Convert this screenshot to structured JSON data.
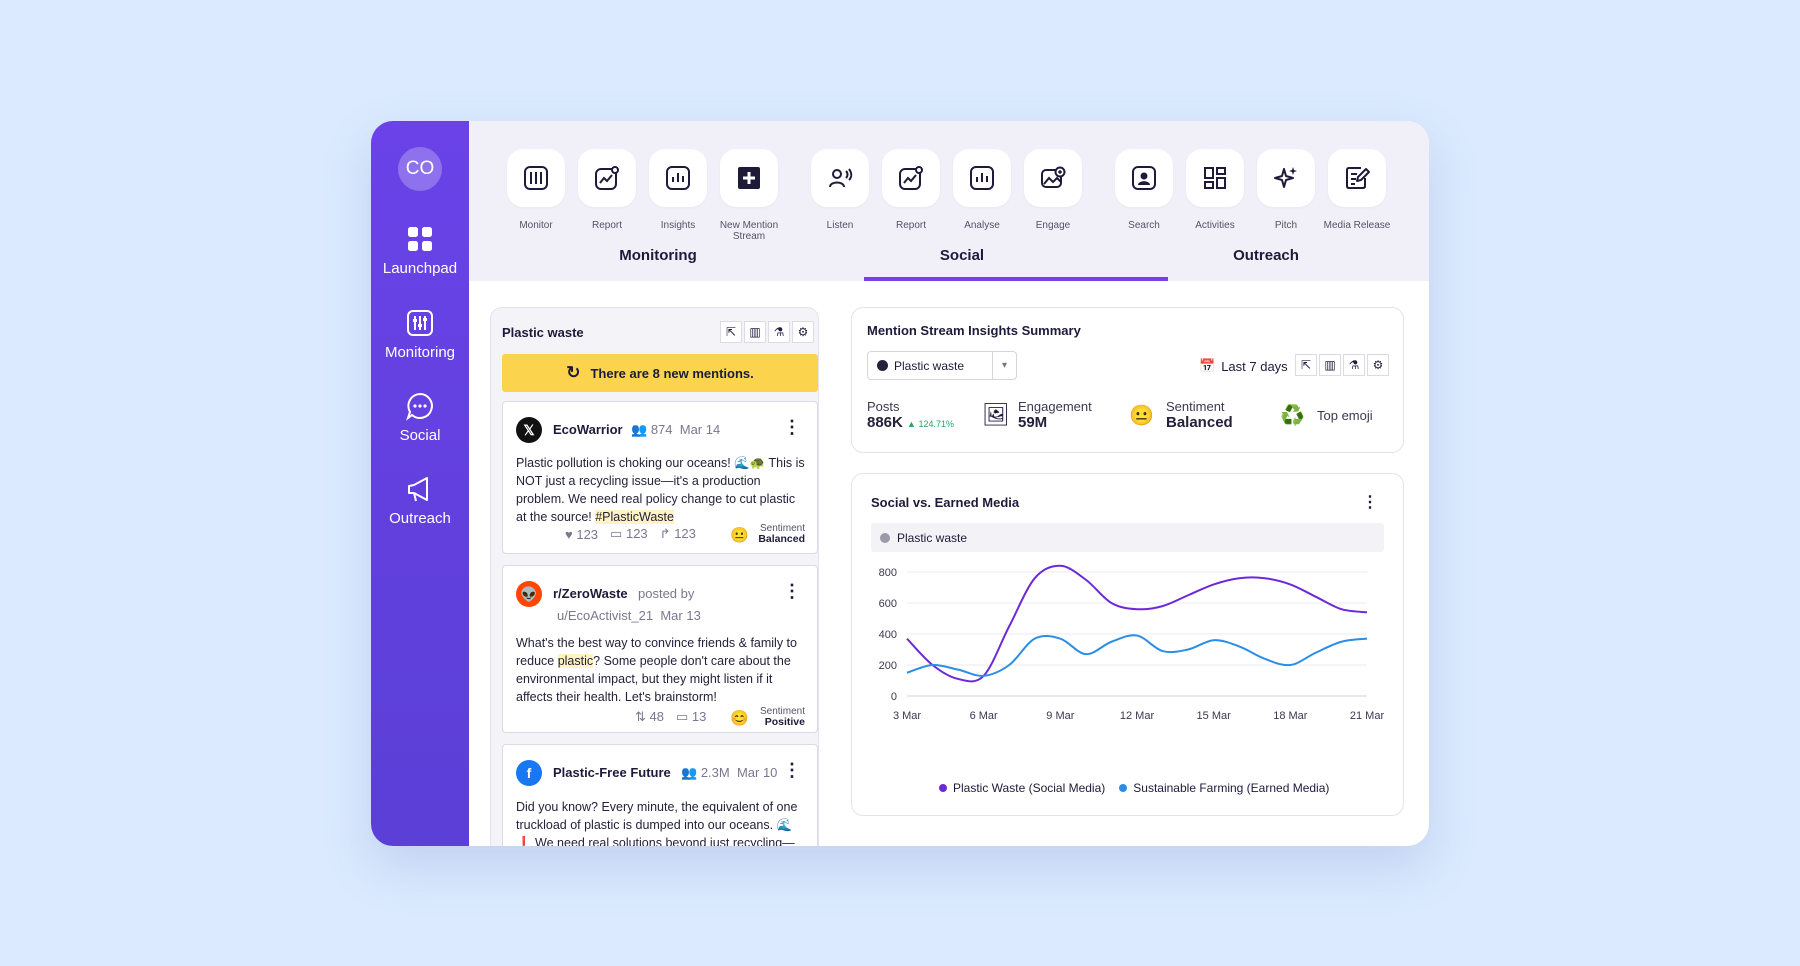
{
  "sidebar": {
    "avatar": "CO",
    "items": [
      {
        "label": "Launchpad",
        "icon": "grid-icon"
      },
      {
        "label": "Monitoring",
        "icon": "sliders-icon"
      },
      {
        "label": "Social",
        "icon": "chat-bubble-icon"
      },
      {
        "label": "Outreach",
        "icon": "megaphone-icon"
      }
    ]
  },
  "toolbar": {
    "groups": [
      "Monitoring",
      "Social",
      "Outreach"
    ],
    "active_group": "Social",
    "tools": [
      {
        "label": "Monitor",
        "icon": "sliders-icon"
      },
      {
        "label": "Report",
        "icon": "report-chart-icon"
      },
      {
        "label": "Insights",
        "icon": "bar-chart-icon"
      },
      {
        "label": "New Mention Stream",
        "icon": "plus-square-icon"
      },
      {
        "label": "Listen",
        "icon": "listen-icon"
      },
      {
        "label": "Report",
        "icon": "report-chart-icon"
      },
      {
        "label": "Analyse",
        "icon": "bar-chart-icon"
      },
      {
        "label": "Engage",
        "icon": "engage-image-icon"
      },
      {
        "label": "Search",
        "icon": "contact-search-icon"
      },
      {
        "label": "Activities",
        "icon": "dashboard-icon"
      },
      {
        "label": "Pitch",
        "icon": "sparkle-icon"
      },
      {
        "label": "Media Release",
        "icon": "edit-document-icon"
      }
    ]
  },
  "mentions": {
    "title": "Plastic waste",
    "banner": "There are 8 new mentions.",
    "posts": [
      {
        "author": "EcoWarrior",
        "platform_icon": "x-logo-icon",
        "followers": "874",
        "date": "Mar 14",
        "text_before": "Plastic pollution is choking our oceans! 🌊🐢 This is NOT just a recycling issue—it's a production problem. We need real policy change to cut plastic at the source! ",
        "hashtag": "#PlasticWaste",
        "likes": "123",
        "comments": "123",
        "shares": "123",
        "sentiment_label": "Sentiment",
        "sentiment": "Balanced"
      },
      {
        "author": "r/ZeroWaste",
        "platform_icon": "reddit-logo-icon",
        "posted_by": "posted by",
        "user": "u/EcoActivist_21",
        "date": "Mar 13",
        "text_before": "What's the best way to convince friends & family to reduce ",
        "highlight": "plastic",
        "text_after": "? Some people don't care about the environmental impact, but they might listen if it affects their health. Let's brainstorm!",
        "votes": "48",
        "comments": "13",
        "sentiment_label": "Sentiment",
        "sentiment": "Positive"
      },
      {
        "author": "Plastic-Free Future",
        "platform_icon": "facebook-logo-icon",
        "followers": "2.3M",
        "date": "Mar 10",
        "text": "Did you know? Every minute, the equivalent of one truckload of plastic is dumped into our oceans. 🌊 ❗ We need real solutions beyond just recycling—"
      }
    ]
  },
  "summary": {
    "title": "Mention Stream Insights Summary",
    "select_value": "Plastic waste",
    "range": "Last 7 days",
    "posts_label": "Posts",
    "posts_value": "886K",
    "posts_growth": "124.71%",
    "engagement_label": "Engagement",
    "engagement_value": "59M",
    "sentiment_label": "Sentiment",
    "sentiment_value": "Balanced",
    "top_emoji_label": "Top emoji",
    "top_emoji": "♻️"
  },
  "chart": {
    "title": "Social vs. Earned Media",
    "filter_label": "Plastic waste",
    "colors": {
      "social": "#6d28d9",
      "earned": "#2b8de6"
    }
  },
  "chart_data": {
    "type": "line",
    "title": "Social vs. Earned Media",
    "x": [
      "3 Mar",
      "4 Mar",
      "5 Mar",
      "6 Mar",
      "7 Mar",
      "8 Mar",
      "9 Mar",
      "10 Mar",
      "11 Mar",
      "12 Mar",
      "13 Mar",
      "14 Mar",
      "15 Mar",
      "16 Mar",
      "17 Mar",
      "18 Mar",
      "19 Mar",
      "20 Mar",
      "21 Mar"
    ],
    "x_ticks": [
      "3 Mar",
      "6 Mar",
      "9 Mar",
      "12 Mar",
      "15 Mar",
      "18 Mar",
      "21 Mar"
    ],
    "ylim": [
      0,
      800
    ],
    "y_ticks": [
      0,
      200,
      400,
      600,
      800
    ],
    "series": [
      {
        "name": "Plastic Waste (Social Media)",
        "values": [
          370,
          200,
          110,
          130,
          450,
          760,
          840,
          750,
          600,
          560,
          580,
          650,
          720,
          760,
          760,
          720,
          640,
          560,
          540
        ]
      },
      {
        "name": "Sustainable Farming (Earned Media)",
        "values": [
          150,
          200,
          170,
          130,
          200,
          370,
          370,
          270,
          350,
          390,
          290,
          300,
          360,
          320,
          240,
          200,
          280,
          350,
          370
        ]
      }
    ],
    "legend_position": "bottom",
    "grid": true
  }
}
